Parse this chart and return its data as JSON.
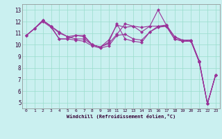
{
  "xlabel": "Windchill (Refroidissement éolien,°C)",
  "background_color": "#caf0f0",
  "grid_color": "#99ddcc",
  "line_color": "#993399",
  "x_ticks": [
    0,
    1,
    2,
    3,
    4,
    5,
    6,
    7,
    8,
    9,
    10,
    11,
    12,
    13,
    14,
    15,
    16,
    17,
    18,
    19,
    20,
    21,
    22,
    23
  ],
  "y_ticks": [
    5,
    6,
    7,
    8,
    9,
    10,
    11,
    12,
    13
  ],
  "ylim": [
    4.5,
    13.5
  ],
  "xlim": [
    -0.5,
    23.5
  ],
  "series": [
    [
      10.8,
      11.4,
      12.1,
      11.6,
      11.1,
      10.7,
      10.8,
      10.7,
      10.0,
      9.8,
      10.4,
      11.7,
      11.5,
      11.6,
      11.1,
      11.6,
      13.0,
      11.7,
      10.7,
      10.3,
      10.4,
      8.6,
      4.9,
      7.4
    ],
    [
      10.8,
      11.4,
      12.1,
      11.6,
      10.5,
      10.5,
      10.8,
      10.8,
      10.0,
      9.8,
      10.2,
      11.8,
      10.5,
      10.3,
      10.2,
      11.1,
      11.6,
      11.6,
      10.5,
      10.3,
      10.3,
      8.5,
      4.9,
      7.4
    ],
    [
      10.8,
      11.4,
      12.1,
      11.6,
      11.0,
      10.7,
      10.5,
      10.5,
      10.0,
      9.8,
      10.1,
      10.9,
      11.8,
      11.6,
      11.5,
      11.6,
      11.6,
      11.7,
      10.7,
      10.4,
      10.4,
      8.6,
      4.9,
      7.4
    ],
    [
      10.8,
      11.4,
      12.0,
      11.5,
      10.5,
      10.5,
      10.4,
      10.3,
      9.9,
      9.7,
      9.9,
      10.8,
      10.9,
      10.5,
      10.4,
      11.1,
      11.5,
      11.6,
      10.5,
      10.3,
      10.3,
      8.5,
      4.9,
      7.4
    ]
  ]
}
